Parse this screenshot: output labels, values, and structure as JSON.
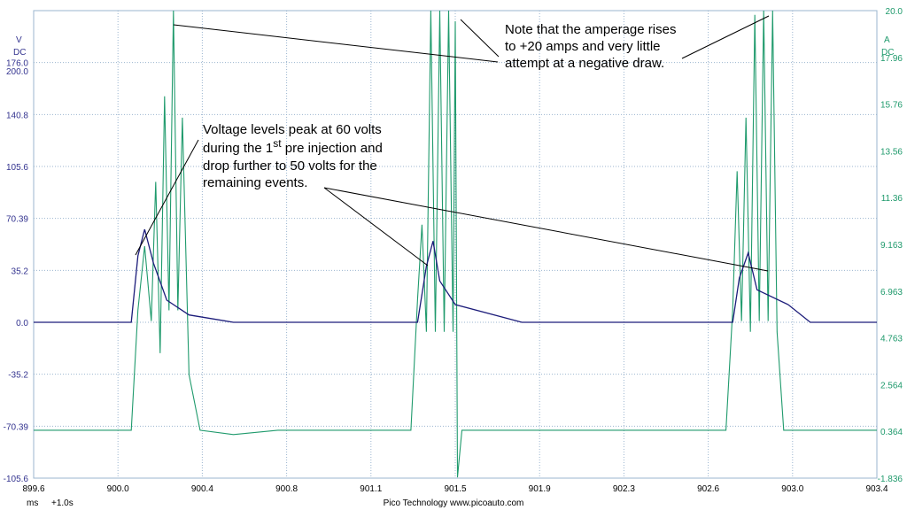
{
  "footer": {
    "units": "ms",
    "scale": "+1.0s",
    "credit": "Pico Technology  www.picoauto.com"
  },
  "colors": {
    "voltage": "#1c1c7a",
    "current": "#1f9a6c",
    "left_axis": "#33338f",
    "right_axis": "#1f9a6c",
    "grid": "#9bb5cf"
  },
  "chart_data": {
    "type": "line",
    "title": "",
    "xlabel": "",
    "ylabel": "",
    "grid": true,
    "x_range": [
      899.6,
      903.4
    ],
    "x_ticks": [
      "899.6",
      "900.0",
      "900.4",
      "900.8",
      "901.1",
      "901.5",
      "901.9",
      "902.3",
      "902.6",
      "903.0",
      "903.4"
    ],
    "y_left": {
      "unit_lines": [
        "V",
        "DC"
      ],
      "range": [
        -105.6,
        211.2
      ],
      "ticks": [
        "200.0",
        "176.0",
        "140.8",
        "105.6",
        "70.39",
        "35.2",
        "0.0",
        "-35.2",
        "-70.39",
        "-105.6"
      ]
    },
    "y_right": {
      "unit_lines": [
        "A",
        "DC"
      ],
      "range": [
        -1.836,
        20.0
      ],
      "ticks": [
        "20.0",
        "17.96",
        "15.76",
        "13.56",
        "11.36",
        "9.163",
        "6.963",
        "4.763",
        "2.564",
        "0.364",
        "-1.836"
      ]
    },
    "series": [
      {
        "axis": "left",
        "x": [
          899.6,
          900.04,
          900.07,
          900.1,
          900.14,
          900.2,
          900.3,
          900.5,
          900.8,
          901.0,
          901.3,
          901.33,
          901.37,
          901.4,
          901.43,
          901.5,
          901.8,
          902.0,
          902.2,
          902.5,
          902.72,
          902.75,
          902.78,
          902.82,
          902.86,
          903.0,
          903.1,
          903.4
        ],
        "y": [
          0,
          0,
          45,
          63,
          40,
          15,
          5,
          0,
          0,
          0,
          0,
          0,
          38,
          55,
          28,
          12,
          0,
          0,
          0,
          0,
          0,
          0,
          30,
          47,
          22,
          12,
          0,
          0
        ]
      },
      {
        "axis": "right",
        "x": [
          899.6,
          900.04,
          900.07,
          900.1,
          900.13,
          900.15,
          900.17,
          900.19,
          900.21,
          900.23,
          900.25,
          900.27,
          900.3,
          900.35,
          900.5,
          900.7,
          901.0,
          901.3,
          901.33,
          901.35,
          901.37,
          901.39,
          901.41,
          901.43,
          901.45,
          901.47,
          901.49,
          901.5,
          901.51,
          901.53,
          901.7,
          902.0,
          902.5,
          902.72,
          902.75,
          902.77,
          902.79,
          902.81,
          902.83,
          902.85,
          902.87,
          902.89,
          902.91,
          902.93,
          902.95,
          902.98,
          903.2,
          903.4
        ],
        "y": [
          0.4,
          0.4,
          6.0,
          9.0,
          5.5,
          12.0,
          4.0,
          16.0,
          6.0,
          20.0,
          6.0,
          15.0,
          3.0,
          0.4,
          0.2,
          0.4,
          0.4,
          0.4,
          6.5,
          10.0,
          5.0,
          20.0,
          5.0,
          20.0,
          5.0,
          20.0,
          5.0,
          19.5,
          -1.8,
          0.4,
          0.4,
          0.4,
          0.4,
          0.4,
          6.0,
          12.5,
          5.5,
          15.0,
          5.0,
          19.8,
          5.5,
          20.0,
          5.5,
          20.0,
          5.0,
          0.4,
          0.4,
          0.4
        ]
      }
    ],
    "annotations": [
      {
        "lines": [
          "Note that the amperage rises",
          "to +20 amps and very little",
          "attempt at a negative draw."
        ]
      },
      {
        "lines": [
          "Voltage levels peak at 60 volts",
          "during the 1",
          "st",
          " pre injection and",
          "drop further to 50 volts for the",
          "remaining events."
        ]
      }
    ]
  }
}
